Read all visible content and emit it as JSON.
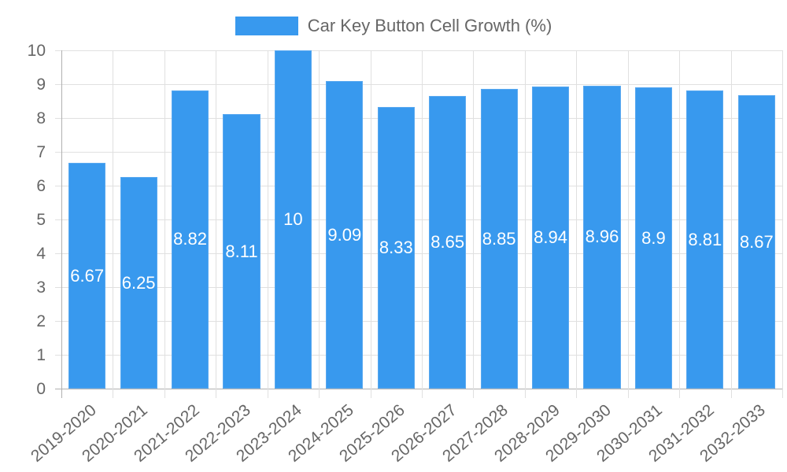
{
  "legend": {
    "label": "Car Key Button Cell Growth (%)",
    "color": "#3899ee"
  },
  "chart_data": {
    "type": "bar",
    "title": "",
    "xlabel": "",
    "ylabel": "",
    "ylim": [
      0,
      10
    ],
    "yticks": [
      0,
      1,
      2,
      3,
      4,
      5,
      6,
      7,
      8,
      9,
      10
    ],
    "grid": true,
    "legend_position": "top",
    "categories": [
      "2019-2020",
      "2020-2021",
      "2021-2022",
      "2022-2023",
      "2023-2024",
      "2024-2025",
      "2025-2026",
      "2026-2027",
      "2027-2028",
      "2028-2029",
      "2029-2030",
      "2030-2031",
      "2031-2032",
      "2032-2033"
    ],
    "series": [
      {
        "name": "Car Key Button Cell Growth (%)",
        "color": "#3899ee",
        "values": [
          6.67,
          6.25,
          8.82,
          8.11,
          10,
          9.09,
          8.33,
          8.65,
          8.85,
          8.94,
          8.96,
          8.9,
          8.81,
          8.67
        ]
      }
    ],
    "data_labels": [
      "6.67",
      "6.25",
      "8.82",
      "8.11",
      "10",
      "9.09",
      "8.33",
      "8.65",
      "8.85",
      "8.94",
      "8.96",
      "8.9",
      "8.81",
      "8.67"
    ]
  }
}
